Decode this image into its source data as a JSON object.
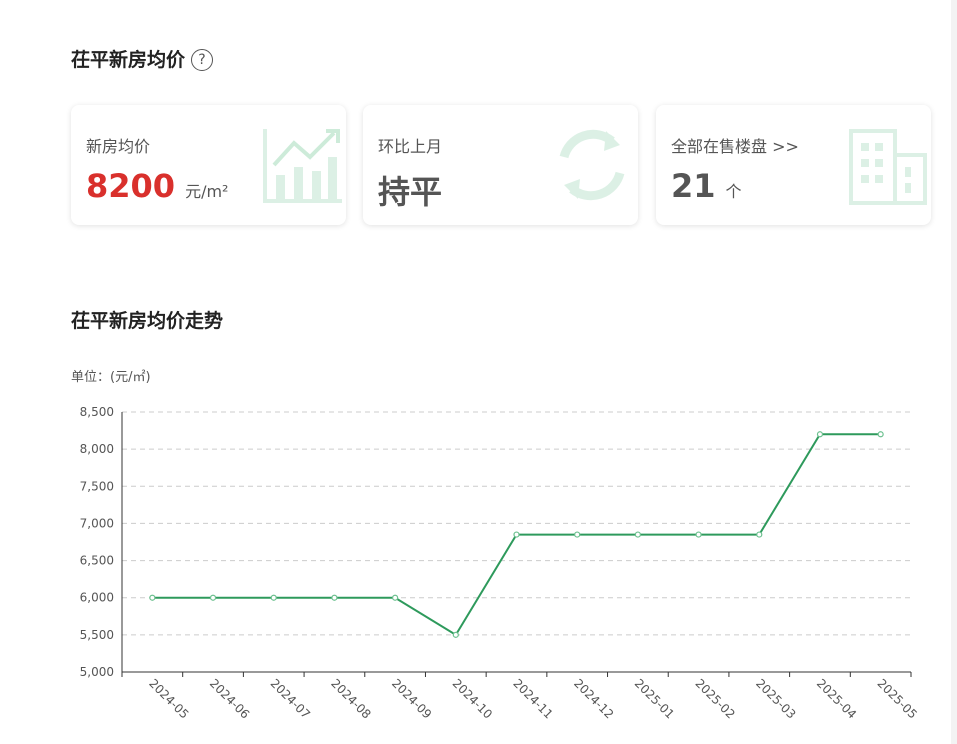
{
  "header": {
    "title": "茌平新房均价",
    "help_icon": "question-circle-icon"
  },
  "cards": [
    {
      "label": "新房均价",
      "value": "8200",
      "unit": "元/m²",
      "value_color": "#d9302c",
      "icon": "chart-up-icon"
    },
    {
      "label": "环比上月",
      "value": "持平",
      "icon": "refresh-icon"
    },
    {
      "label": "全部在售楼盘 >>",
      "value": "21",
      "unit": "个",
      "icon": "building-icon"
    }
  ],
  "trend": {
    "title": "茌平新房均价走势",
    "unit_label": "单位：(元/㎡)"
  },
  "chart_data": {
    "type": "line",
    "categories": [
      "2024-05",
      "2024-06",
      "2024-07",
      "2024-08",
      "2024-09",
      "2024-10",
      "2024-11",
      "2024-12",
      "2025-01",
      "2025-02",
      "2025-03",
      "2025-04",
      "2025-05"
    ],
    "values": [
      6000,
      6000,
      6000,
      6000,
      6000,
      5500,
      6850,
      6850,
      6850,
      6850,
      6850,
      8200,
      8200
    ],
    "ylim": [
      5000,
      8500
    ],
    "yticks": [
      "5,000",
      "5,500",
      "6,000",
      "6,500",
      "7,000",
      "7,500",
      "8,000",
      "8,500"
    ],
    "ylabel": "单位：(元/㎡)",
    "grid": true,
    "line_color": "#2e9a5c"
  }
}
